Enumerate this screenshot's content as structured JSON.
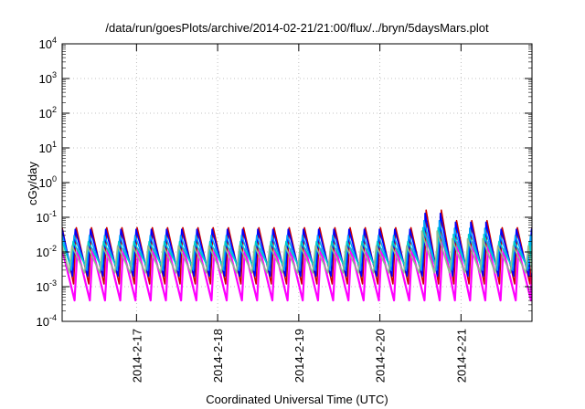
{
  "chart_data": {
    "type": "line",
    "title": "/data/run/goesPlots/archive/2014-02-21/21:00/flux/../bryn/5daysMars.plot",
    "xlabel": "Coordinated Universal Time (UTC)",
    "ylabel": "cGy/day",
    "y_scale": "log",
    "ylim": [
      0.0001,
      10000
    ],
    "xlim": [
      "2014-02-16 02:00",
      "2014-02-21 21:00"
    ],
    "grid": true,
    "x_ticks": [
      "2014-2-17",
      "2014-2-18",
      "2014-2-19",
      "2014-2-20",
      "2014-2-21"
    ],
    "y_ticks": [
      {
        "base": "10",
        "exp": "-4",
        "value": 0.0001
      },
      {
        "base": "10",
        "exp": "-3",
        "value": 0.001
      },
      {
        "base": "10",
        "exp": "-2",
        "value": 0.01
      },
      {
        "base": "10",
        "exp": "-1",
        "value": 0.1
      },
      {
        "base": "10",
        "exp": "0",
        "value": 1
      },
      {
        "base": "10",
        "exp": "1",
        "value": 10
      },
      {
        "base": "10",
        "exp": "2",
        "value": 100
      },
      {
        "base": "10",
        "exp": "3",
        "value": 1000
      },
      {
        "base": "10",
        "exp": "4",
        "value": 10000
      }
    ],
    "oscillation_period_hours": 4.5,
    "series": [
      {
        "color": "#ff00ff",
        "peak": 0.012,
        "trough": 0.0004,
        "event_peak": 0.03
      },
      {
        "color": "#cc0000",
        "peak": 0.05,
        "trough": 0.0012,
        "event_peak": 0.16
      },
      {
        "color": "#0000ff",
        "peak": 0.045,
        "trough": 0.002,
        "event_peak": 0.13
      },
      {
        "color": "#00a0ff",
        "peak": 0.03,
        "trough": 0.003,
        "event_peak": 0.08
      },
      {
        "color": "#00cccc",
        "peak": 0.02,
        "trough": 0.004,
        "event_peak": 0.05
      },
      {
        "color": "#8fbc8f",
        "peak": 0.015,
        "trough": 0.0025,
        "event_peak": 0.04
      }
    ],
    "event": {
      "start": "2014-02-20 12:00",
      "end": "2014-02-20 20:00"
    }
  }
}
